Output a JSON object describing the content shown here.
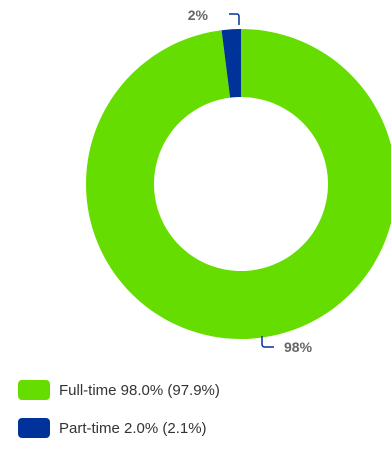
{
  "chart_data": {
    "type": "pie",
    "style": "donut",
    "categories": [
      "Full-time",
      "Part-time"
    ],
    "values": [
      98,
      2
    ],
    "data_labels": [
      "98%",
      "2%"
    ],
    "colors": [
      "#66dd00",
      "#003399"
    ],
    "legend": {
      "placement": "bottom-left",
      "items": [
        {
          "label": "Full-time 98.0% (97.9%)",
          "color": "#66dd00"
        },
        {
          "label": "Part-time 2.0% (2.1%)",
          "color": "#003399"
        }
      ]
    }
  }
}
